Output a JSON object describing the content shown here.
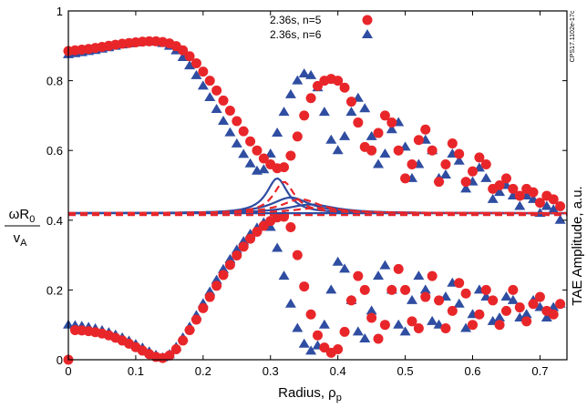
{
  "chart_data": {
    "type": "scatter",
    "xlabel": "Radius, ρ",
    "xlabel_sub": "p",
    "ylabel_num": "ωR",
    "ylabel_num_sub": "0",
    "ylabel_den": "v",
    "ylabel_den_sub": "A",
    "ylabel_right": "TAE Amplitude, a.u.",
    "figure_code": "CPS17.1102e-17c",
    "xlim": [
      0,
      0.74
    ],
    "ylim": [
      0,
      1
    ],
    "x_ticks": [
      "0",
      "0.1",
      "0.2",
      "0.3",
      "0.4",
      "0.5",
      "0.6",
      "0.7"
    ],
    "y_ticks": [
      "0",
      "0.2",
      "0.4",
      "0.6",
      "0.8",
      "1"
    ],
    "legend_position": "top-right",
    "colors": {
      "n5": "#e8262a",
      "n6": "#2f4da1"
    },
    "series": [
      {
        "name": "2.36s, n=5",
        "marker": "circle",
        "color": "#e8262a",
        "upper_branch": [
          [
            0.0,
            0.885
          ],
          [
            0.01,
            0.887
          ],
          [
            0.02,
            0.889
          ],
          [
            0.03,
            0.891
          ],
          [
            0.04,
            0.894
          ],
          [
            0.05,
            0.897
          ],
          [
            0.06,
            0.9
          ],
          [
            0.07,
            0.903
          ],
          [
            0.08,
            0.906
          ],
          [
            0.09,
            0.908
          ],
          [
            0.1,
            0.91
          ],
          [
            0.11,
            0.912
          ],
          [
            0.12,
            0.913
          ],
          [
            0.13,
            0.913
          ],
          [
            0.14,
            0.911
          ],
          [
            0.15,
            0.907
          ],
          [
            0.16,
            0.899
          ],
          [
            0.17,
            0.887
          ],
          [
            0.18,
            0.87
          ],
          [
            0.19,
            0.85
          ],
          [
            0.2,
            0.826
          ],
          [
            0.21,
            0.8
          ],
          [
            0.22,
            0.772
          ],
          [
            0.23,
            0.743
          ],
          [
            0.24,
            0.714
          ],
          [
            0.25,
            0.684
          ],
          [
            0.26,
            0.655
          ],
          [
            0.27,
            0.626
          ],
          [
            0.28,
            0.6
          ],
          [
            0.29,
            0.577
          ],
          [
            0.3,
            0.56
          ],
          [
            0.31,
            0.549
          ],
          [
            0.32,
            0.552
          ],
          [
            0.33,
            0.585
          ],
          [
            0.34,
            0.64
          ],
          [
            0.35,
            0.7
          ],
          [
            0.36,
            0.75
          ],
          [
            0.37,
            0.785
          ],
          [
            0.38,
            0.8
          ],
          [
            0.39,
            0.805
          ],
          [
            0.4,
            0.8
          ],
          [
            0.41,
            0.78
          ],
          [
            0.42,
            0.74
          ],
          [
            0.43,
            0.68
          ],
          [
            0.44,
            0.61
          ],
          [
            0.45,
            0.6
          ],
          [
            0.46,
            0.65
          ],
          [
            0.47,
            0.7
          ],
          [
            0.48,
            0.68
          ],
          [
            0.49,
            0.6
          ],
          [
            0.5,
            0.52
          ],
          [
            0.51,
            0.56
          ],
          [
            0.52,
            0.63
          ],
          [
            0.53,
            0.66
          ],
          [
            0.54,
            0.6
          ],
          [
            0.55,
            0.51
          ],
          [
            0.56,
            0.56
          ],
          [
            0.57,
            0.62
          ],
          [
            0.58,
            0.59
          ],
          [
            0.59,
            0.51
          ],
          [
            0.6,
            0.54
          ],
          [
            0.61,
            0.58
          ],
          [
            0.62,
            0.56
          ],
          [
            0.63,
            0.49
          ],
          [
            0.64,
            0.5
          ],
          [
            0.65,
            0.52
          ],
          [
            0.66,
            0.49
          ],
          [
            0.67,
            0.47
          ],
          [
            0.68,
            0.49
          ],
          [
            0.69,
            0.48
          ],
          [
            0.7,
            0.45
          ],
          [
            0.71,
            0.47
          ],
          [
            0.72,
            0.46
          ],
          [
            0.73,
            0.44
          ]
        ],
        "lower_branch": [
          [
            0.0,
            0.0
          ],
          [
            0.01,
            0.085
          ],
          [
            0.02,
            0.084
          ],
          [
            0.03,
            0.082
          ],
          [
            0.04,
            0.079
          ],
          [
            0.05,
            0.075
          ],
          [
            0.06,
            0.07
          ],
          [
            0.07,
            0.063
          ],
          [
            0.08,
            0.055
          ],
          [
            0.09,
            0.046
          ],
          [
            0.1,
            0.036
          ],
          [
            0.11,
            0.026
          ],
          [
            0.12,
            0.016
          ],
          [
            0.13,
            0.008
          ],
          [
            0.14,
            0.005
          ],
          [
            0.15,
            0.012
          ],
          [
            0.16,
            0.03
          ],
          [
            0.17,
            0.055
          ],
          [
            0.18,
            0.085
          ],
          [
            0.19,
            0.115
          ],
          [
            0.2,
            0.148
          ],
          [
            0.21,
            0.18
          ],
          [
            0.22,
            0.212
          ],
          [
            0.23,
            0.243
          ],
          [
            0.24,
            0.272
          ],
          [
            0.25,
            0.299
          ],
          [
            0.26,
            0.324
          ],
          [
            0.27,
            0.347
          ],
          [
            0.28,
            0.367
          ],
          [
            0.29,
            0.384
          ],
          [
            0.3,
            0.398
          ],
          [
            0.31,
            0.408
          ],
          [
            0.32,
            0.41
          ],
          [
            0.33,
            0.38
          ],
          [
            0.34,
            0.3
          ],
          [
            0.35,
            0.21
          ],
          [
            0.36,
            0.13
          ],
          [
            0.37,
            0.07
          ],
          [
            0.38,
            0.035
          ],
          [
            0.39,
            0.02
          ],
          [
            0.4,
            0.03
          ],
          [
            0.41,
            0.08
          ],
          [
            0.42,
            0.17
          ],
          [
            0.43,
            0.24
          ],
          [
            0.44,
            0.2
          ],
          [
            0.45,
            0.12
          ],
          [
            0.46,
            0.06
          ],
          [
            0.47,
            0.1
          ],
          [
            0.48,
            0.2
          ],
          [
            0.49,
            0.26
          ],
          [
            0.5,
            0.2
          ],
          [
            0.51,
            0.11
          ],
          [
            0.52,
            0.09
          ],
          [
            0.53,
            0.18
          ],
          [
            0.54,
            0.24
          ],
          [
            0.55,
            0.17
          ],
          [
            0.56,
            0.09
          ],
          [
            0.57,
            0.14
          ],
          [
            0.58,
            0.22
          ],
          [
            0.59,
            0.19
          ],
          [
            0.6,
            0.1
          ],
          [
            0.61,
            0.13
          ],
          [
            0.62,
            0.2
          ],
          [
            0.63,
            0.17
          ],
          [
            0.64,
            0.1
          ],
          [
            0.65,
            0.14
          ],
          [
            0.66,
            0.2
          ],
          [
            0.67,
            0.15
          ],
          [
            0.68,
            0.11
          ],
          [
            0.69,
            0.16
          ],
          [
            0.7,
            0.18
          ],
          [
            0.71,
            0.14
          ],
          [
            0.72,
            0.13
          ],
          [
            0.73,
            0.16
          ]
        ]
      },
      {
        "name": "2.36s, n=6",
        "marker": "triangle",
        "color": "#2f4da1",
        "upper_branch": [
          [
            0.0,
            0.875
          ],
          [
            0.01,
            0.878
          ],
          [
            0.02,
            0.881
          ],
          [
            0.03,
            0.884
          ],
          [
            0.04,
            0.887
          ],
          [
            0.05,
            0.891
          ],
          [
            0.06,
            0.895
          ],
          [
            0.07,
            0.899
          ],
          [
            0.08,
            0.903
          ],
          [
            0.09,
            0.906
          ],
          [
            0.1,
            0.909
          ],
          [
            0.11,
            0.911
          ],
          [
            0.12,
            0.912
          ],
          [
            0.13,
            0.911
          ],
          [
            0.14,
            0.907
          ],
          [
            0.15,
            0.899
          ],
          [
            0.16,
            0.886
          ],
          [
            0.17,
            0.867
          ],
          [
            0.18,
            0.843
          ],
          [
            0.19,
            0.815
          ],
          [
            0.2,
            0.785
          ],
          [
            0.21,
            0.752
          ],
          [
            0.22,
            0.718
          ],
          [
            0.23,
            0.684
          ],
          [
            0.24,
            0.651
          ],
          [
            0.25,
            0.619
          ],
          [
            0.26,
            0.589
          ],
          [
            0.27,
            0.562
          ],
          [
            0.28,
            0.541
          ],
          [
            0.29,
            0.545
          ],
          [
            0.3,
            0.59
          ],
          [
            0.31,
            0.65
          ],
          [
            0.32,
            0.71
          ],
          [
            0.33,
            0.76
          ],
          [
            0.34,
            0.8
          ],
          [
            0.35,
            0.82
          ],
          [
            0.36,
            0.815
          ],
          [
            0.37,
            0.78
          ],
          [
            0.38,
            0.71
          ],
          [
            0.39,
            0.63
          ],
          [
            0.4,
            0.6
          ],
          [
            0.41,
            0.64
          ],
          [
            0.42,
            0.71
          ],
          [
            0.43,
            0.75
          ],
          [
            0.44,
            0.72
          ],
          [
            0.45,
            0.64
          ],
          [
            0.46,
            0.56
          ],
          [
            0.47,
            0.59
          ],
          [
            0.48,
            0.66
          ],
          [
            0.49,
            0.68
          ],
          [
            0.5,
            0.61
          ],
          [
            0.51,
            0.52
          ],
          [
            0.52,
            0.56
          ],
          [
            0.53,
            0.63
          ],
          [
            0.54,
            0.6
          ],
          [
            0.55,
            0.52
          ],
          [
            0.56,
            0.53
          ],
          [
            0.57,
            0.59
          ],
          [
            0.58,
            0.57
          ],
          [
            0.59,
            0.49
          ],
          [
            0.6,
            0.51
          ],
          [
            0.61,
            0.55
          ],
          [
            0.62,
            0.52
          ],
          [
            0.63,
            0.46
          ],
          [
            0.64,
            0.48
          ],
          [
            0.65,
            0.5
          ],
          [
            0.66,
            0.47
          ],
          [
            0.67,
            0.44
          ],
          [
            0.68,
            0.47
          ],
          [
            0.69,
            0.46
          ],
          [
            0.7,
            0.42
          ],
          [
            0.71,
            0.44
          ],
          [
            0.72,
            0.43
          ],
          [
            0.73,
            0.4
          ]
        ],
        "lower_branch": [
          [
            0.0,
            0.1
          ],
          [
            0.01,
            0.098
          ],
          [
            0.02,
            0.096
          ],
          [
            0.03,
            0.093
          ],
          [
            0.04,
            0.089
          ],
          [
            0.05,
            0.084
          ],
          [
            0.06,
            0.078
          ],
          [
            0.07,
            0.071
          ],
          [
            0.08,
            0.063
          ],
          [
            0.09,
            0.054
          ],
          [
            0.1,
            0.044
          ],
          [
            0.11,
            0.034
          ],
          [
            0.12,
            0.023
          ],
          [
            0.13,
            0.013
          ],
          [
            0.14,
            0.006
          ],
          [
            0.15,
            0.015
          ],
          [
            0.16,
            0.036
          ],
          [
            0.17,
            0.063
          ],
          [
            0.18,
            0.094
          ],
          [
            0.19,
            0.127
          ],
          [
            0.2,
            0.161
          ],
          [
            0.21,
            0.195
          ],
          [
            0.22,
            0.228
          ],
          [
            0.23,
            0.259
          ],
          [
            0.24,
            0.288
          ],
          [
            0.25,
            0.315
          ],
          [
            0.26,
            0.339
          ],
          [
            0.27,
            0.36
          ],
          [
            0.28,
            0.378
          ],
          [
            0.29,
            0.393
          ],
          [
            0.3,
            0.38
          ],
          [
            0.31,
            0.32
          ],
          [
            0.32,
            0.24
          ],
          [
            0.33,
            0.16
          ],
          [
            0.34,
            0.09
          ],
          [
            0.35,
            0.045
          ],
          [
            0.36,
            0.025
          ],
          [
            0.37,
            0.04
          ],
          [
            0.38,
            0.1
          ],
          [
            0.39,
            0.2
          ],
          [
            0.4,
            0.28
          ],
          [
            0.41,
            0.26
          ],
          [
            0.42,
            0.17
          ],
          [
            0.43,
            0.08
          ],
          [
            0.44,
            0.06
          ],
          [
            0.45,
            0.14
          ],
          [
            0.46,
            0.24
          ],
          [
            0.47,
            0.27
          ],
          [
            0.48,
            0.2
          ],
          [
            0.49,
            0.1
          ],
          [
            0.5,
            0.08
          ],
          [
            0.51,
            0.17
          ],
          [
            0.52,
            0.24
          ],
          [
            0.53,
            0.2
          ],
          [
            0.54,
            0.11
          ],
          [
            0.55,
            0.1
          ],
          [
            0.56,
            0.18
          ],
          [
            0.57,
            0.22
          ],
          [
            0.58,
            0.16
          ],
          [
            0.59,
            0.09
          ],
          [
            0.6,
            0.13
          ],
          [
            0.61,
            0.2
          ],
          [
            0.62,
            0.18
          ],
          [
            0.63,
            0.11
          ],
          [
            0.64,
            0.12
          ],
          [
            0.65,
            0.18
          ],
          [
            0.66,
            0.17
          ],
          [
            0.67,
            0.12
          ],
          [
            0.68,
            0.13
          ],
          [
            0.69,
            0.17
          ],
          [
            0.7,
            0.15
          ],
          [
            0.71,
            0.12
          ],
          [
            0.72,
            0.15
          ],
          [
            0.73,
            0.16
          ]
        ]
      }
    ],
    "amplitude_curves": [
      {
        "color": "#2f4da1",
        "style": "solid",
        "center": 0.31,
        "peak": 0.52,
        "width": 0.03
      },
      {
        "color": "#2f4da1",
        "style": "solid",
        "center": 0.33,
        "peak": 0.465,
        "width": 0.055
      },
      {
        "color": "#2f4da1",
        "style": "solid",
        "center": 0.36,
        "peak": 0.445,
        "width": 0.07
      },
      {
        "color": "#e8262a",
        "style": "dashed",
        "center": 0.32,
        "peak": 0.51,
        "width": 0.03
      },
      {
        "color": "#e8262a",
        "style": "dashed",
        "center": 0.345,
        "peak": 0.46,
        "width": 0.055
      },
      {
        "color": "#e8262a",
        "style": "dashed",
        "center": 0.37,
        "peak": 0.435,
        "width": 0.07
      }
    ],
    "amplitude_baseline": 0.42
  }
}
